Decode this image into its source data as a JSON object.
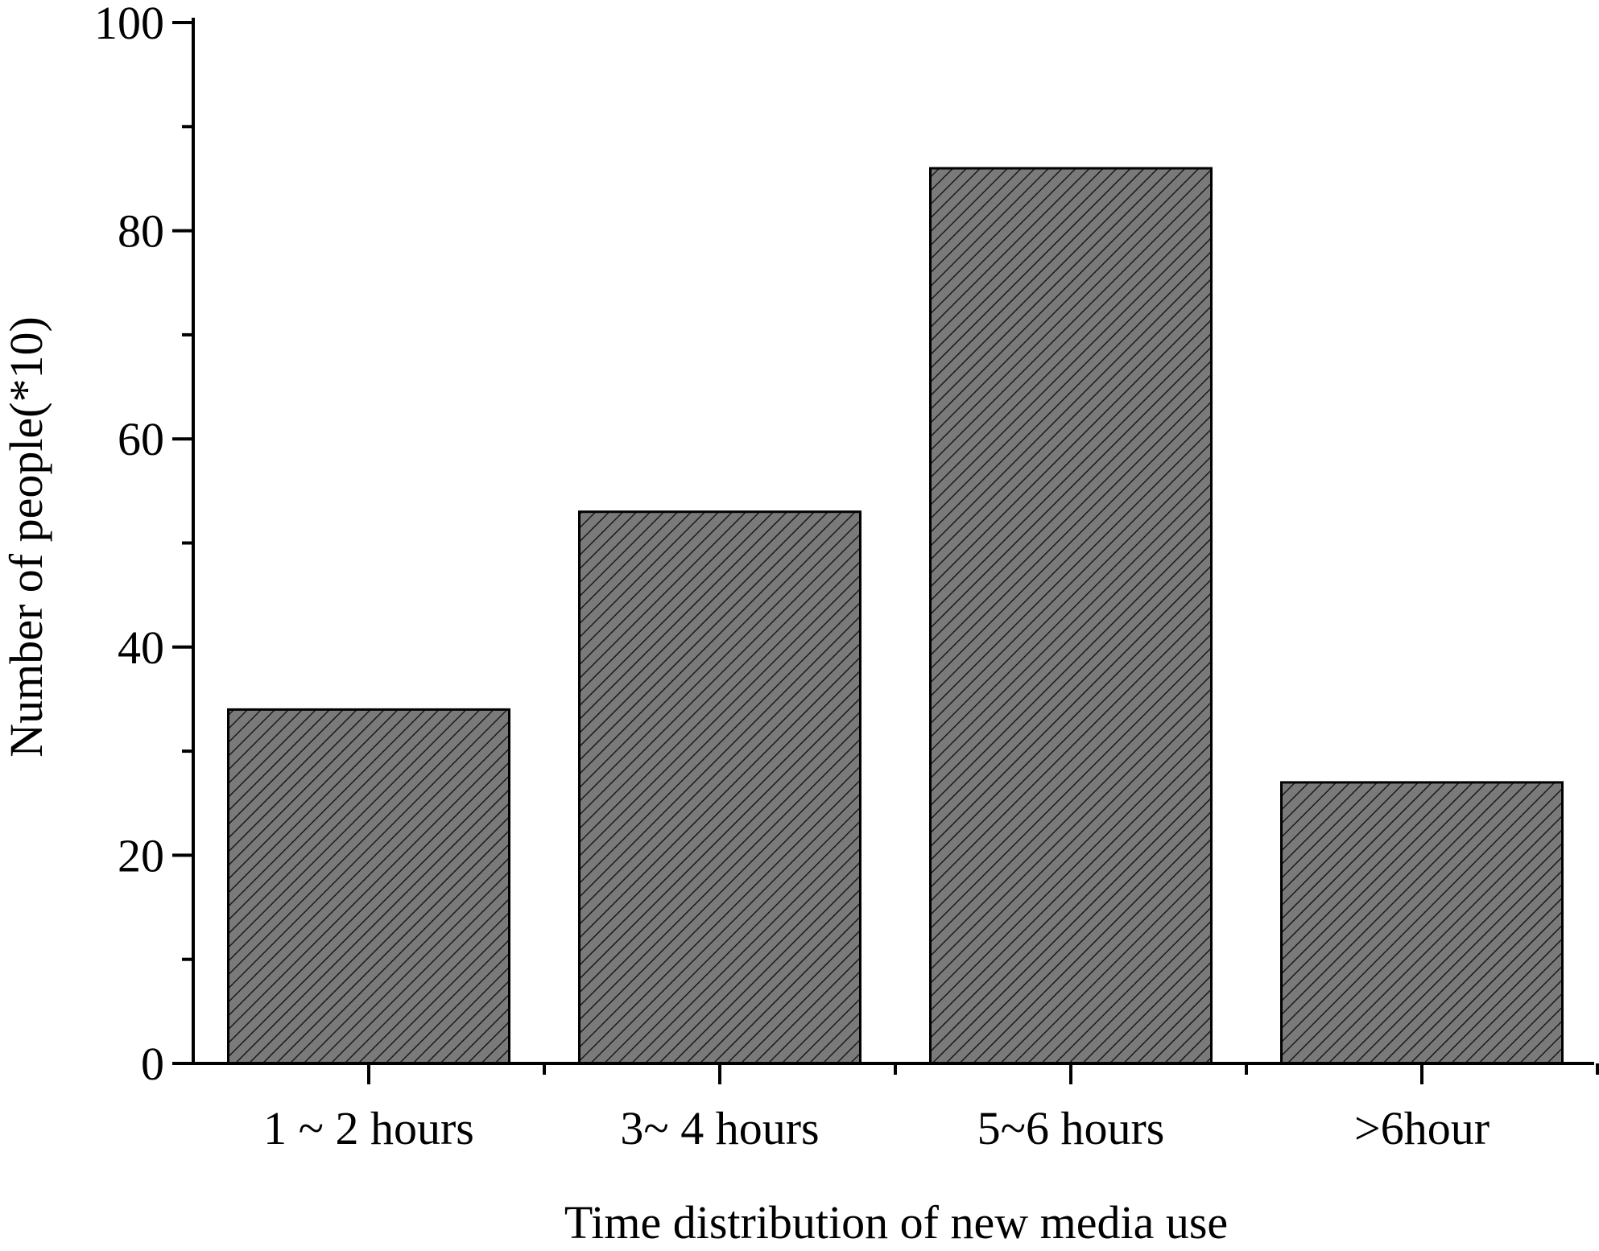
{
  "chart_data": {
    "type": "bar",
    "title": "",
    "categories": [
      "1 ~ 2 hours",
      "3~ 4 hours",
      "5~6 hours",
      ">6hour"
    ],
    "values": [
      34,
      53,
      86,
      27
    ],
    "xlabel": "Time distribution of new media use",
    "ylabel": "Number of people(*10)",
    "ylim": [
      0,
      100
    ],
    "yticks": [
      0,
      20,
      40,
      60,
      80,
      100
    ],
    "grid": false,
    "legend": "none",
    "bar_fill": "#7a7a7a",
    "bar_pattern": "diagonal-hatch",
    "hatch_color": "#1a1a1a",
    "bar_stroke": "#000000"
  }
}
